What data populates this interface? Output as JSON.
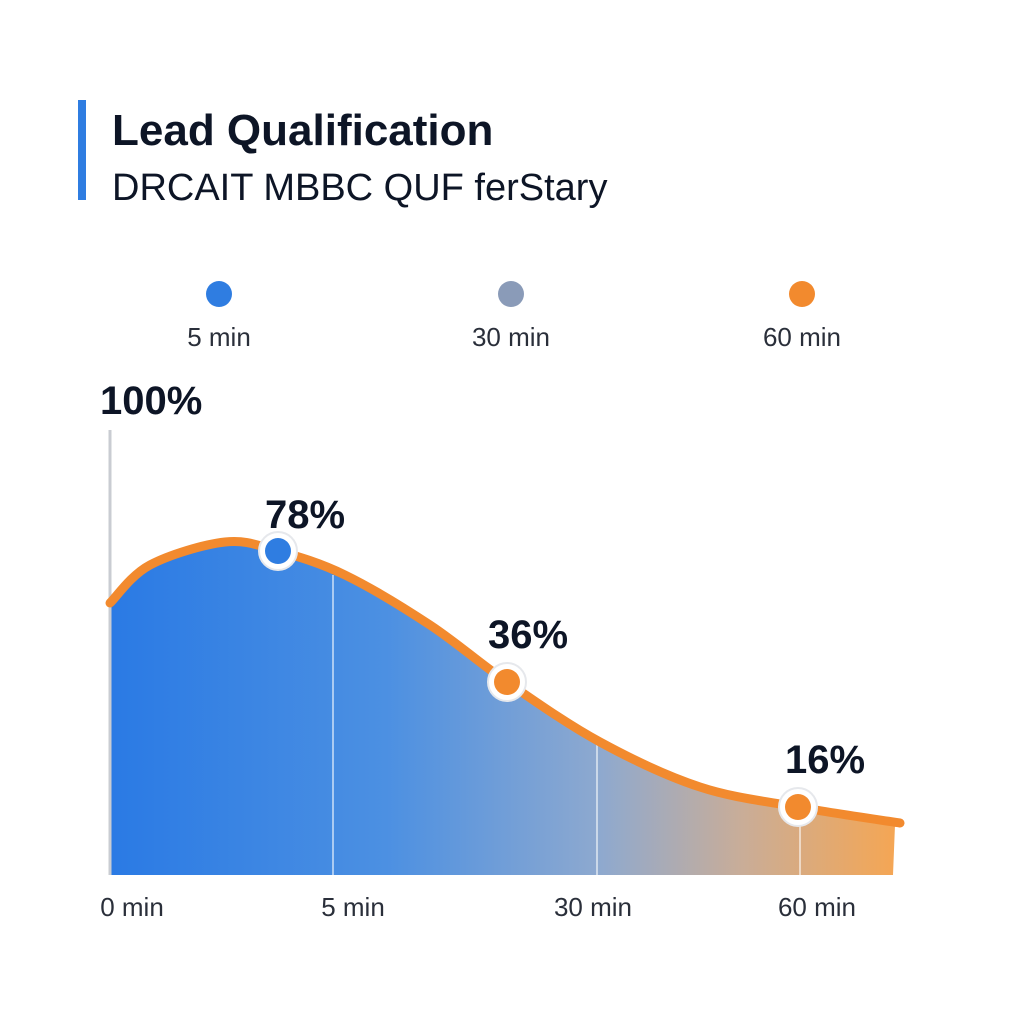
{
  "title": "Lead Qualification",
  "subtitle": "DRCAIT MBBC QUF  ferStary",
  "colors": {
    "accent_bar": "#2f7de1",
    "blue": "#2f7de1",
    "gray": "#8a9bb8",
    "orange": "#f28a2e",
    "text": "#0d1526"
  },
  "timeline": {
    "points": [
      {
        "label": "5 min",
        "color": "#2f7de1"
      },
      {
        "label": "30 min",
        "color": "#8a9bb8"
      },
      {
        "label": "60 min",
        "color": "#f28a2e"
      }
    ]
  },
  "chart_data": {
    "type": "area",
    "title": "Lead Qualification",
    "subtitle": "DRCAIT MBBC QUF  ferStary",
    "y_top_label": "100%",
    "x_tick_labels": [
      "0 min",
      "5 min",
      "30 min",
      "60 min"
    ],
    "ylim": [
      0,
      100
    ],
    "grid": false,
    "legend": "none",
    "highlighted_points": [
      {
        "x": "5 min",
        "value": 78,
        "label": "78%",
        "color": "#2f7de1"
      },
      {
        "x": "30 min",
        "value": 36,
        "label": "36%",
        "color": "#f28a2e"
      },
      {
        "x": "60 min",
        "value": 16,
        "label": "16%",
        "color": "#f28a2e"
      }
    ]
  }
}
